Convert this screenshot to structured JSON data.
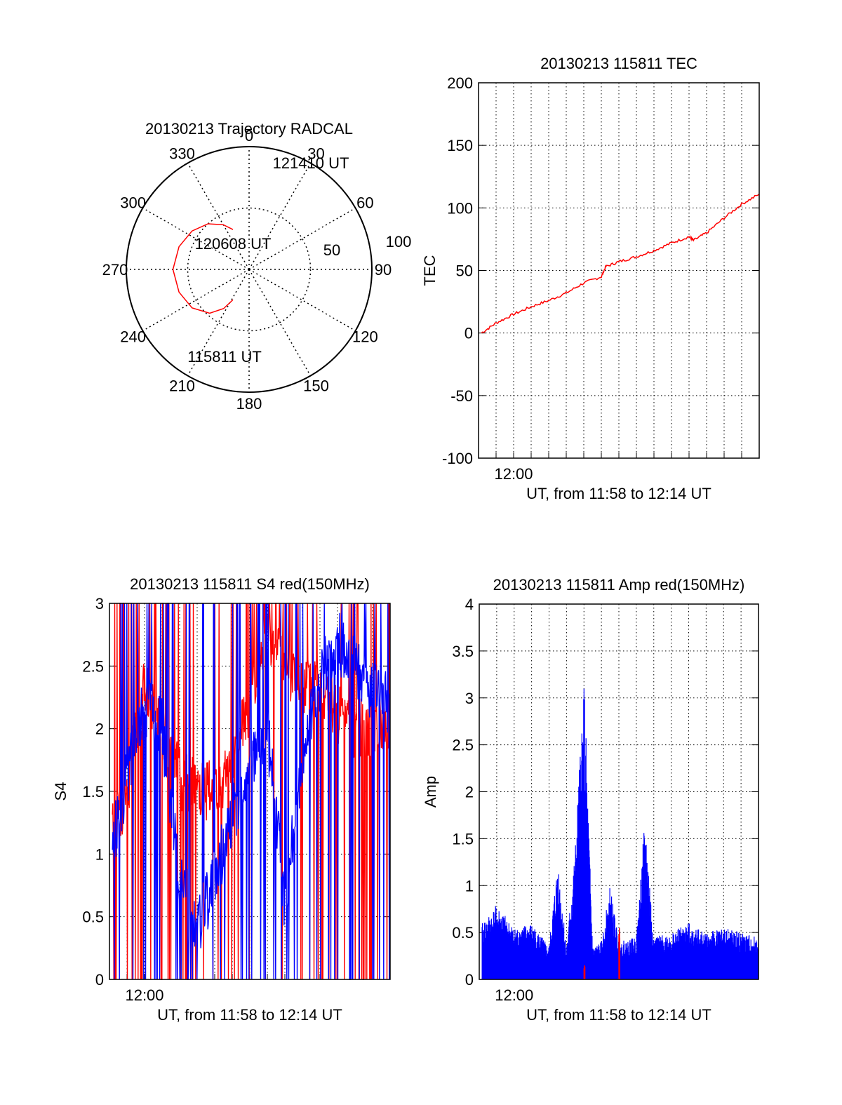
{
  "colors": {
    "red": "#ff0000",
    "blue": "#0000ff",
    "axis": "#000000",
    "grid": "#000000"
  },
  "chart_data": [
    {
      "id": "trajectory",
      "type": "polar",
      "title": "20130213 Trajectory RADCAL",
      "angle_labels": [
        "0",
        "30",
        "60",
        "90",
        "120",
        "150",
        "180",
        "210",
        "240",
        "270",
        "300",
        "330"
      ],
      "radial_labels": [
        "50",
        "100"
      ],
      "elevation_max": 100,
      "grid": true,
      "annotations": [
        "121410 UT",
        "120608 UT",
        "115811 UT"
      ],
      "series": [
        {
          "color": "red",
          "points": [
            [
              208,
              72
            ],
            [
              213,
              62
            ],
            [
              222,
              52
            ],
            [
              236,
              44
            ],
            [
              252,
              40
            ],
            [
              270,
              38
            ],
            [
              288,
              40
            ],
            [
              304,
              44
            ],
            [
              318,
              50
            ],
            [
              330,
              58
            ],
            [
              338,
              65
            ]
          ]
        }
      ]
    },
    {
      "id": "tec",
      "type": "line",
      "title": "20130213 115811 TEC",
      "xlabel": "UT, from 11:58 to 12:14 UT",
      "ylabel": "TEC",
      "x_range": [
        "11:58",
        "12:14"
      ],
      "x_tick_labels": [
        {
          "t": "12:00",
          "label": "12:00"
        }
      ],
      "y_range": [
        -100,
        200
      ],
      "y_tick_labels": [
        "-100",
        "-50",
        "0",
        "50",
        "100",
        "150",
        "200"
      ],
      "grid": true,
      "series": [
        {
          "color": "red",
          "points": [
            [
              "11:58:10",
              0
            ],
            [
              "11:59:00",
              8
            ],
            [
              "12:00:00",
              15
            ],
            [
              "12:01:00",
              21
            ],
            [
              "12:02:00",
              26
            ],
            [
              "12:03:00",
              32
            ],
            [
              "12:04:00",
              40
            ],
            [
              "12:05:00",
              45
            ],
            [
              "12:05:15",
              53
            ],
            [
              "12:06:00",
              57
            ],
            [
              "12:07:00",
              61
            ],
            [
              "12:08:00",
              66
            ],
            [
              "12:09:00",
              72
            ],
            [
              "12:10:00",
              77
            ],
            [
              "12:10:15",
              74
            ],
            [
              "12:11:00",
              80
            ],
            [
              "12:12:00",
              92
            ],
            [
              "12:13:00",
              103
            ],
            [
              "12:14:00",
              111
            ]
          ]
        }
      ]
    },
    {
      "id": "s4",
      "type": "line",
      "title": "20130213 115811 S4 red(150MHz)",
      "xlabel": "UT, from 11:58 to 12:14 UT",
      "ylabel": "S4",
      "x_range": [
        "11:58",
        "12:14"
      ],
      "x_tick_labels": [
        {
          "t": "12:00",
          "label": "12:00"
        }
      ],
      "y_range": [
        0,
        3
      ],
      "y_tick_labels": [
        "0",
        "0.5",
        "1",
        "1.5",
        "2",
        "2.5",
        "3"
      ],
      "grid": true,
      "series": [
        {
          "color": "red",
          "note_style": "spiky",
          "points": [
            [
              "11:58:10",
              1.2
            ],
            [
              "11:59:00",
              1.5
            ],
            [
              "12:00:00",
              2.4
            ],
            [
              "12:01:00",
              2.0
            ],
            [
              "12:02:00",
              1.6
            ],
            [
              "12:03:00",
              1.5
            ],
            [
              "12:04:00",
              1.5
            ],
            [
              "12:05:00",
              1.7
            ],
            [
              "12:06:00",
              2.2
            ],
            [
              "12:07:00",
              2.8
            ],
            [
              "12:08:00",
              2.5
            ],
            [
              "12:09:00",
              2.3
            ],
            [
              "12:10:00",
              2.4
            ],
            [
              "12:11:00",
              2.1
            ],
            [
              "12:12:00",
              2.0
            ],
            [
              "12:13:00",
              2.0
            ],
            [
              "12:14:00",
              2.0
            ]
          ]
        },
        {
          "color": "blue",
          "note_style": "spiky",
          "points": [
            [
              "11:58:10",
              1.1
            ],
            [
              "11:59:00",
              1.6
            ],
            [
              "12:00:00",
              2.2
            ],
            [
              "12:01:00",
              2.0
            ],
            [
              "12:02:00",
              0.8
            ],
            [
              "12:03:00",
              0.4
            ],
            [
              "12:04:00",
              0.8
            ],
            [
              "12:05:00",
              1.3
            ],
            [
              "12:06:00",
              1.7
            ],
            [
              "12:07:00",
              2.0
            ],
            [
              "12:08:00",
              0.6
            ],
            [
              "12:09:00",
              1.8
            ],
            [
              "12:10:00",
              2.4
            ],
            [
              "12:11:00",
              2.7
            ],
            [
              "12:12:00",
              2.5
            ],
            [
              "12:13:00",
              2.3
            ],
            [
              "12:14:00",
              2.2
            ]
          ]
        }
      ]
    },
    {
      "id": "amp",
      "type": "line",
      "title": "20130213 115811 Amp red(150MHz)",
      "xlabel": "UT, from 11:58 to 12:14 UT",
      "ylabel": "Amp",
      "x_range": [
        "11:58",
        "12:14"
      ],
      "x_tick_labels": [
        {
          "t": "12:00",
          "label": "12:00"
        }
      ],
      "y_range": [
        0,
        4
      ],
      "y_tick_labels": [
        "0",
        "0.5",
        "1",
        "1.5",
        "2",
        "2.5",
        "3",
        "3.5",
        "4"
      ],
      "grid": true,
      "series": [
        {
          "color": "blue",
          "points": [
            [
              "11:58:10",
              0.6
            ],
            [
              "11:59:00",
              0.8
            ],
            [
              "12:00:00",
              0.55
            ],
            [
              "12:01:00",
              0.6
            ],
            [
              "12:02:00",
              0.35
            ],
            [
              "12:02:30",
              1.3
            ],
            [
              "12:03:00",
              0.35
            ],
            [
              "12:03:30",
              1.4
            ],
            [
              "12:04:00",
              3.25
            ],
            [
              "12:04:30",
              0.35
            ],
            [
              "12:05:00",
              0.4
            ],
            [
              "12:05:30",
              1.0
            ],
            [
              "12:06:00",
              0.4
            ],
            [
              "12:07:00",
              0.45
            ],
            [
              "12:07:30",
              1.75
            ],
            [
              "12:08:00",
              0.45
            ],
            [
              "12:09:00",
              0.5
            ],
            [
              "12:10:00",
              0.6
            ],
            [
              "12:11:00",
              0.5
            ],
            [
              "12:12:00",
              0.55
            ],
            [
              "12:13:00",
              0.5
            ],
            [
              "12:14:00",
              0.45
            ]
          ]
        },
        {
          "color": "red",
          "points": [
            [
              "12:04:00",
              0.15
            ],
            [
              "12:06:00",
              0.55
            ]
          ]
        }
      ]
    }
  ]
}
